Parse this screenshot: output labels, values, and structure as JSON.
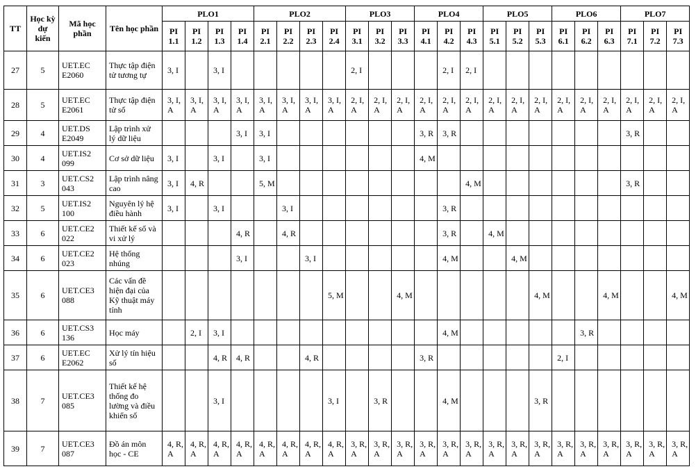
{
  "table": {
    "header": {
      "tt": "TT",
      "semester": "Học kỳ dự kiến",
      "code": "Mã học phần",
      "name": "Tên học phần",
      "plos": [
        {
          "name": "PLO1",
          "pis": [
            "PI 1.1",
            "PI 1.2",
            "PI 1.3",
            "PI 1.4"
          ]
        },
        {
          "name": "PLO2",
          "pis": [
            "PI 2.1",
            "PI 2.2",
            "PI 2.3",
            "PI 2.4"
          ]
        },
        {
          "name": "PLO3",
          "pis": [
            "PI 3.1",
            "PI 3.2",
            "PI 3.3"
          ]
        },
        {
          "name": "PLO4",
          "pis": [
            "PI 4.1",
            "PI 4.2",
            "PI 4.3"
          ]
        },
        {
          "name": "PLO5",
          "pis": [
            "PI 5.1",
            "PI 5.2",
            "PI 5.3"
          ]
        },
        {
          "name": "PLO6",
          "pis": [
            "PI 6.1",
            "PI 6.2",
            "PI 6.3"
          ]
        },
        {
          "name": "PLO7",
          "pis": [
            "PI 7.1",
            "PI 7.2",
            "PI 7.3"
          ]
        }
      ]
    },
    "rows": [
      {
        "tt": "27",
        "semester": "5",
        "code": "UET.EC E2060",
        "name": "Thực tập điện tử tương tự",
        "pi": [
          "3, I",
          null,
          "3, I",
          null,
          null,
          null,
          null,
          null,
          "2, I",
          null,
          null,
          null,
          "2, I",
          "2, I",
          null,
          null,
          null,
          null,
          null,
          null,
          null,
          null,
          null
        ]
      },
      {
        "tt": "28",
        "semester": "5",
        "code": "UET.EC E2061",
        "name": "Thực tập điện tử số",
        "pi": [
          "3, I, A",
          "3, I, A",
          "3, I, A",
          "3, I, A",
          "3, I, A",
          "3, I, A",
          "3, I, A",
          "3, I, A",
          "2, I, A",
          "2, I, A",
          "2, I, A",
          "2, I, A",
          "2, I, A",
          "2, I, A",
          "2, I, A",
          "2, I, A",
          "2, I, A",
          "2, I, A",
          "2, I, A",
          "2, I, A",
          "2, I, A",
          "2, I, A",
          "2, I, A"
        ]
      },
      {
        "tt": "29",
        "semester": "4",
        "code": "UET.DS E2049",
        "name": "Lập trình xử lý dữ liệu",
        "pi": [
          null,
          null,
          null,
          "3, I",
          "3, I",
          null,
          null,
          null,
          null,
          null,
          null,
          "3, R",
          "3, R",
          null,
          null,
          null,
          null,
          null,
          null,
          null,
          "3, R",
          null,
          null
        ]
      },
      {
        "tt": "30",
        "semester": "4",
        "code": "UET.IS2 099",
        "name": "Cơ sở dữ liệu",
        "pi": [
          "3, I",
          null,
          "3, I",
          null,
          "3, I",
          null,
          null,
          null,
          null,
          null,
          null,
          "4, M",
          null,
          null,
          null,
          null,
          null,
          null,
          null,
          null,
          null,
          null,
          null
        ]
      },
      {
        "tt": "31",
        "semester": "3",
        "code": "UET.CS2 043",
        "name": "Lập trình nâng cao",
        "pi": [
          "3, I",
          "4, R",
          null,
          null,
          "5, M",
          null,
          null,
          null,
          null,
          null,
          null,
          null,
          null,
          "4, M",
          null,
          null,
          null,
          null,
          null,
          null,
          "3, R",
          null,
          null
        ]
      },
      {
        "tt": "32",
        "semester": "5",
        "code": "UET.IS2 100",
        "name": "Nguyên lý hệ điều hành",
        "pi": [
          "3, I",
          null,
          "3, I",
          null,
          null,
          "3, I",
          null,
          null,
          null,
          null,
          null,
          null,
          "3, R",
          null,
          null,
          null,
          null,
          null,
          null,
          null,
          null,
          null,
          null
        ]
      },
      {
        "tt": "33",
        "semester": "6",
        "code": "UET.CE2 022",
        "name": "Thiết kế số và vi xử lý",
        "pi": [
          null,
          null,
          null,
          "4, R",
          null,
          "4, R",
          null,
          null,
          null,
          null,
          null,
          null,
          "3, R",
          null,
          "4, M",
          null,
          null,
          null,
          null,
          null,
          null,
          null,
          null
        ]
      },
      {
        "tt": "34",
        "semester": "6",
        "code": "UET.CE2 023",
        "name": "Hệ thống nhúng",
        "pi": [
          null,
          null,
          null,
          "3, I",
          null,
          null,
          "3, I",
          null,
          null,
          null,
          null,
          null,
          "4, M",
          null,
          null,
          "4, M",
          null,
          null,
          null,
          null,
          null,
          null,
          null
        ]
      },
      {
        "tt": "35",
        "semester": "6",
        "code": "UET.CE3 088",
        "name": "Các vấn đề hiện đại của Kỹ thuật máy tính",
        "pi": [
          null,
          null,
          null,
          null,
          null,
          null,
          null,
          "5, M",
          null,
          null,
          "4, M",
          null,
          null,
          null,
          null,
          null,
          "4, M",
          null,
          null,
          "4, M",
          null,
          null,
          "4, M"
        ]
      },
      {
        "tt": "36",
        "semester": "6",
        "code": "UET.CS3 136",
        "name": "Học máy",
        "pi": [
          null,
          "2, I",
          "3, I",
          null,
          null,
          null,
          null,
          null,
          null,
          null,
          null,
          null,
          "4, M",
          null,
          null,
          null,
          null,
          null,
          "3, R",
          null,
          null,
          null,
          null
        ]
      },
      {
        "tt": "37",
        "semester": "6",
        "code": "UET.EC E2062",
        "name": "Xử lý tín hiệu số",
        "pi": [
          null,
          null,
          "4, R",
          "4, R",
          null,
          null,
          "4, R",
          null,
          null,
          null,
          null,
          "3, R",
          null,
          null,
          null,
          null,
          null,
          "2, I",
          null,
          null,
          null,
          null,
          null
        ]
      },
      {
        "tt": "38",
        "semester": "7",
        "code": "UET.CE3 085",
        "name": "Thiết kế hệ thống đo lường và điều khiển số",
        "pi": [
          null,
          null,
          "3, I",
          null,
          null,
          null,
          null,
          "3, I",
          null,
          "3, R",
          null,
          null,
          "4, M",
          null,
          null,
          null,
          "3, R",
          null,
          null,
          null,
          null,
          null,
          null
        ]
      },
      {
        "tt": "39",
        "semester": "7",
        "code": "UET.CE3 087",
        "name": "Đồ án môn học - CE",
        "pi": [
          "4, R, A",
          "4, R, A",
          "4, R, A",
          "4, R, A",
          "4, R, A",
          "4, R, A",
          "4, R, A",
          "4, R, A",
          "3, R, A",
          "3, R, A",
          "3, R, A",
          "3, R, A",
          "3, R, A",
          "3, R, A",
          "3, R, A",
          "3, R, A",
          "3, R, A",
          "3, R, A",
          "3, R, A",
          "3, R, A",
          "3, R, A",
          "3, R, A",
          "3, R, A"
        ]
      }
    ]
  }
}
